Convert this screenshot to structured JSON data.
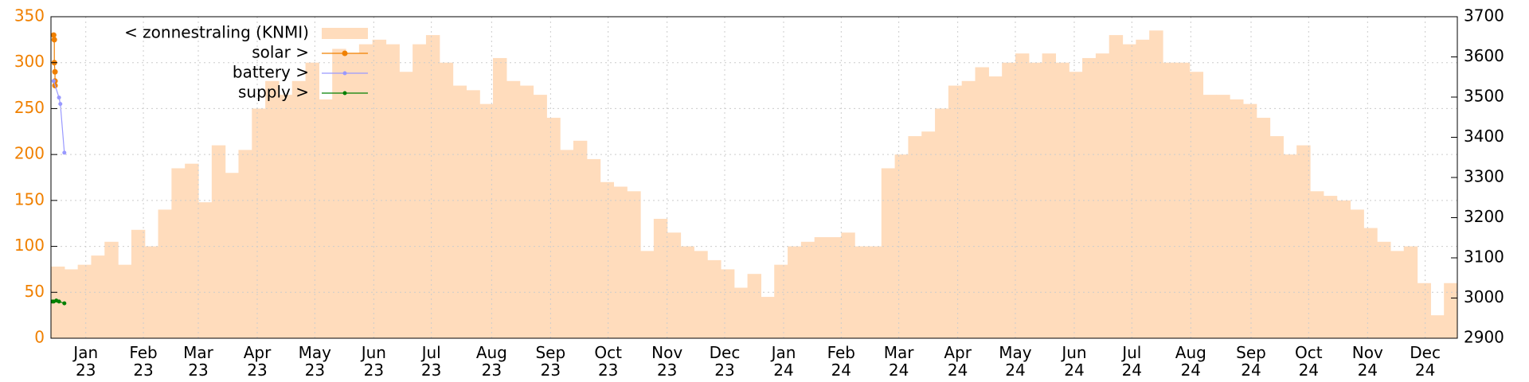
{
  "chart_data": {
    "type": "step-area",
    "xlim": [
      0,
      105
    ],
    "ylim": [
      0,
      350
    ],
    "yticks": [
      0,
      50,
      100,
      150,
      200,
      250,
      300,
      350
    ],
    "y2lim": [
      2900,
      3700
    ],
    "y2ticks": [
      2900,
      3000,
      3100,
      3200,
      3300,
      3400,
      3500,
      3600,
      3700
    ],
    "xticks": [
      {
        "value": 2.6,
        "label": "Jan\n23"
      },
      {
        "value": 6.9,
        "label": "Feb\n23"
      },
      {
        "value": 11,
        "label": "Mar\n23"
      },
      {
        "value": 15.4,
        "label": "Apr\n23"
      },
      {
        "value": 19.7,
        "label": "May\n23"
      },
      {
        "value": 24.1,
        "label": "Jun\n23"
      },
      {
        "value": 28.4,
        "label": "Jul\n23"
      },
      {
        "value": 32.9,
        "label": "Aug\n23"
      },
      {
        "value": 37.3,
        "label": "Sep\n23"
      },
      {
        "value": 41.6,
        "label": "Oct\n23"
      },
      {
        "value": 46,
        "label": "Nov\n23"
      },
      {
        "value": 50.3,
        "label": "Dec\n23"
      },
      {
        "value": 54.7,
        "label": "Jan\n24"
      },
      {
        "value": 59,
        "label": "Feb\n24"
      },
      {
        "value": 63.3,
        "label": "Mar\n24"
      },
      {
        "value": 67.7,
        "label": "Apr\n24"
      },
      {
        "value": 72,
        "label": "May\n24"
      },
      {
        "value": 76.4,
        "label": "Jun\n24"
      },
      {
        "value": 80.7,
        "label": "Jul\n24"
      },
      {
        "value": 85.1,
        "label": "Aug\n24"
      },
      {
        "value": 89.6,
        "label": "Sep\n24"
      },
      {
        "value": 93.9,
        "label": "Oct\n24"
      },
      {
        "value": 98.3,
        "label": "Nov\n24"
      },
      {
        "value": 102.6,
        "label": "Dec\n24"
      }
    ],
    "grid": true,
    "legend": "top-left",
    "area": {
      "name": "< zonnestraling (KNMI)",
      "color": "#ffdcbc",
      "values": [
        78,
        75,
        80,
        90,
        105,
        80,
        118,
        100,
        140,
        185,
        190,
        148,
        210,
        180,
        205,
        250,
        280,
        265,
        280,
        300,
        260,
        315,
        310,
        320,
        325,
        320,
        290,
        320,
        330,
        300,
        275,
        270,
        255,
        305,
        280,
        275,
        265,
        240,
        205,
        215,
        195,
        170,
        165,
        160,
        95,
        130,
        115,
        100,
        95,
        85,
        75,
        55,
        70,
        45,
        80,
        100,
        105,
        110,
        110,
        115,
        100,
        100,
        185,
        200,
        220,
        225,
        250,
        275,
        280,
        295,
        285,
        300,
        310,
        300,
        310,
        300,
        290,
        305,
        310,
        330,
        320,
        325,
        335,
        300,
        300,
        290,
        265,
        265,
        260,
        255,
        240,
        220,
        200,
        210,
        160,
        155,
        150,
        140,
        120,
        105,
        95,
        100,
        60,
        25,
        60
      ]
    },
    "series": [
      {
        "name": "solar >",
        "color": "#f08000",
        "x": [
          0.2,
          0.25,
          0.25,
          0.3,
          0.3,
          0.3
        ],
        "values": [
          330,
          325,
          300,
          290,
          280,
          275
        ]
      },
      {
        "name": "battery >",
        "color": "#9999ff",
        "x": [
          0.2,
          0.6,
          0.7,
          1.0
        ],
        "values": [
          280,
          262,
          255,
          202
        ]
      },
      {
        "name": "supply >",
        "color": "#008000",
        "x": [
          0.1,
          0.2,
          0.4,
          0.6,
          1.0
        ],
        "values": [
          40,
          40,
          41,
          40,
          38
        ]
      }
    ]
  }
}
